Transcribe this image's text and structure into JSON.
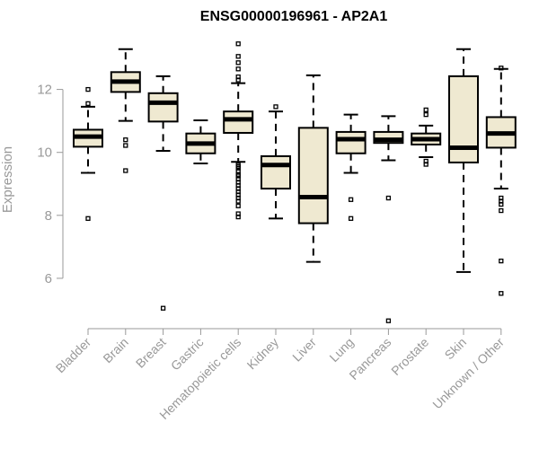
{
  "chart_data": {
    "type": "boxplot",
    "title": "ENSG00000196961 - AP2A1",
    "xlabel": "",
    "ylabel": "Expression",
    "ylim": [
      4.4,
      13.7
    ],
    "yticks": [
      6,
      8,
      10,
      12
    ],
    "grid": false,
    "box_color": "#efe9d1",
    "categories": [
      "Bladder",
      "Brain",
      "Breast",
      "Gastric",
      "Hematopoietic cells",
      "Kidney",
      "Liver",
      "Lung",
      "Pancreas",
      "Prostate",
      "Skin",
      "Unknown / Other"
    ],
    "boxes": [
      {
        "name": "Bladder",
        "whisker_low": 9.35,
        "q1": 10.18,
        "median": 10.5,
        "q3": 10.72,
        "whisker_high": 11.45,
        "outliers": [
          12.0,
          11.55,
          7.9
        ]
      },
      {
        "name": "Brain",
        "whisker_low": 11.0,
        "q1": 11.92,
        "median": 12.25,
        "q3": 12.55,
        "whisker_high": 13.28,
        "outliers": [
          10.4,
          10.22,
          9.42
        ]
      },
      {
        "name": "Breast",
        "whisker_low": 10.05,
        "q1": 10.98,
        "median": 11.58,
        "q3": 11.88,
        "whisker_high": 12.42,
        "outliers": [
          5.05
        ]
      },
      {
        "name": "Gastric",
        "whisker_low": 9.65,
        "q1": 9.97,
        "median": 10.28,
        "q3": 10.6,
        "whisker_high": 11.02,
        "outliers": []
      },
      {
        "name": "Hematopoietic cells",
        "whisker_low": 9.7,
        "q1": 10.62,
        "median": 11.05,
        "q3": 11.3,
        "whisker_high": 12.2,
        "outliers": [
          13.45,
          13.05,
          12.85,
          12.65,
          12.4,
          12.3,
          9.6,
          9.55,
          9.5,
          9.4,
          9.3,
          9.25,
          9.15,
          9.05,
          8.95,
          8.85,
          8.75,
          8.65,
          8.55,
          8.45,
          8.3,
          8.05,
          7.95
        ]
      },
      {
        "name": "Kidney",
        "whisker_low": 7.9,
        "q1": 8.85,
        "median": 9.6,
        "q3": 9.88,
        "whisker_high": 11.3,
        "outliers": [
          11.45
        ]
      },
      {
        "name": "Liver",
        "whisker_low": 6.52,
        "q1": 7.75,
        "median": 8.58,
        "q3": 10.78,
        "whisker_high": 12.45,
        "outliers": []
      },
      {
        "name": "Lung",
        "whisker_low": 9.35,
        "q1": 9.97,
        "median": 10.42,
        "q3": 10.65,
        "whisker_high": 11.2,
        "outliers": [
          8.5,
          7.9
        ]
      },
      {
        "name": "Pancreas",
        "whisker_low": 9.75,
        "q1": 10.3,
        "median": 10.4,
        "q3": 10.65,
        "whisker_high": 11.15,
        "outliers": [
          8.55,
          4.65
        ]
      },
      {
        "name": "Prostate",
        "whisker_low": 9.85,
        "q1": 10.25,
        "median": 10.42,
        "q3": 10.6,
        "whisker_high": 10.85,
        "outliers": [
          11.35,
          11.2,
          9.72,
          9.62
        ]
      },
      {
        "name": "Skin",
        "whisker_low": 6.2,
        "q1": 9.68,
        "median": 10.15,
        "q3": 12.42,
        "whisker_high": 13.28,
        "outliers": []
      },
      {
        "name": "Unknown / Other",
        "whisker_low": 8.85,
        "q1": 10.15,
        "median": 10.6,
        "q3": 11.12,
        "whisker_high": 12.65,
        "outliers": [
          12.68,
          8.55,
          8.45,
          8.35,
          8.15,
          6.55,
          5.52
        ]
      }
    ]
  }
}
